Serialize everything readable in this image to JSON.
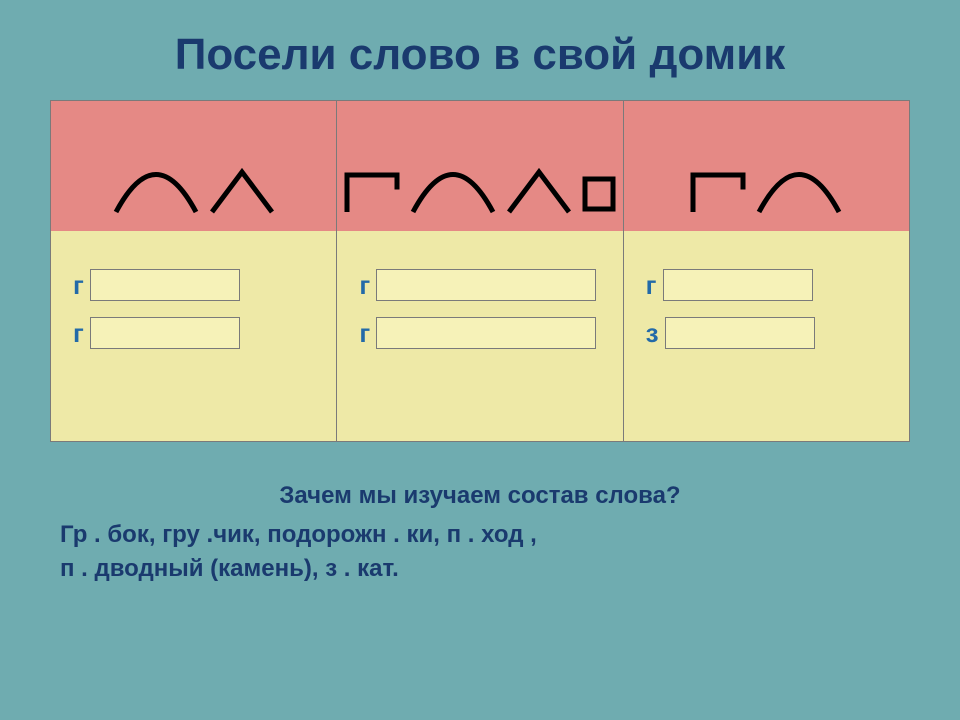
{
  "title": "Посели слово в свой домик",
  "columns": [
    {
      "header_shapes": [
        "arc",
        "caret"
      ],
      "rows": [
        {
          "letter": "г",
          "blank_width": 150
        },
        {
          "letter": "г",
          "blank_width": 150
        }
      ]
    },
    {
      "header_shapes": [
        "bracket",
        "arc",
        "caret",
        "box"
      ],
      "rows": [
        {
          "letter": "г",
          "blank_width": 220
        },
        {
          "letter": "г",
          "blank_width": 220
        }
      ]
    },
    {
      "header_shapes": [
        "bracket",
        "arc"
      ],
      "rows": [
        {
          "letter": "г",
          "blank_width": 150
        },
        {
          "letter": "з",
          "blank_width": 150
        }
      ]
    }
  ],
  "question": "Зачем мы изучаем состав слова?",
  "words_line1": "Гр . бок,  гру .чик,   подорожн . ки,  п . ход ,",
  "words_line2": "п . дводный  (камень),  з . кат.",
  "colors": {
    "background": "#6facb0",
    "header_bg": "#e58985",
    "body_bg": "#eee9a7",
    "blank_bg": "#f6f2b8",
    "text_dark": "#1a3a6e",
    "text_blue": "#236aa8",
    "border": "#7a7a7a",
    "shape_stroke": "#000000"
  },
  "shape_stroke_width": 5
}
